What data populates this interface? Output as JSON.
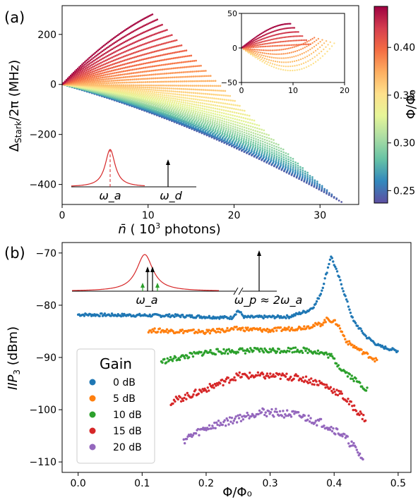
{
  "colors": {
    "colormap": [
      "#5e4fa2",
      "#3288bd",
      "#66c2a5",
      "#abdda4",
      "#e6f598",
      "#fee08b",
      "#fdae61",
      "#f46d43",
      "#d53e4f",
      "#9e0142"
    ],
    "gain_0": "#1f77b4",
    "gain_5": "#ff7f0e",
    "gain_10": "#2ca02c",
    "gain_15": "#d62728",
    "gain_20": "#9467bd",
    "lorentzian": "#d62728",
    "pump_arrow": "#000000",
    "side_arrows": "#2ca02c"
  },
  "chart_data": [
    {
      "type": "scatter",
      "panel_label": "(a)",
      "xlabel": "n̄ ( 10³ photons)",
      "ylabel": "Δ_Stark/2π (MHz)",
      "xlim": [
        0,
        34.5
      ],
      "ylim": [
        -480,
        315
      ],
      "xticks": [
        "0",
        "10",
        "20",
        "30"
      ],
      "yticks": [
        "200",
        "0",
        "−200",
        "−400"
      ],
      "series_count": 40,
      "series_ranges": {
        "phi": [
          0.24,
          0.44
        ],
        "n_max_photons_1e3": [
          32.5,
          10.5
        ],
        "end_shift_MHz": [
          -470,
          280
        ],
        "description": "one dotted curve per flux bias; low flux bends downward to about -470 MHz at 32.5e3 photons, high flux bends upward to about 280 MHz at 10.5e3 photons"
      },
      "colorbar": {
        "label": "Φ/Φ₀",
        "range": [
          0.237,
          0.443
        ],
        "ticks": [
          "0.40",
          "0.35",
          "0.30",
          "0.25"
        ]
      },
      "inset": {
        "xlim": [
          0,
          20
        ],
        "ylim": [
          -50,
          50
        ],
        "xticks": [
          "0",
          "10",
          "20"
        ],
        "yticks": [
          "50",
          "0",
          "−50"
        ],
        "series_count": 12,
        "description": "zoom of the high-flux branch near zero shift"
      },
      "schematic": {
        "resonance_label": "ω_a",
        "drive_label": "ω_d"
      }
    },
    {
      "type": "scatter",
      "panel_label": "(b)",
      "xlabel": "Φ/Φ₀",
      "ylabel": "IIP₃ (dBm)",
      "xlim": [
        -0.025,
        0.52
      ],
      "ylim": [
        -112,
        -68
      ],
      "xticks": [
        "0.0",
        "0.1",
        "0.2",
        "0.3",
        "0.4",
        "0.5"
      ],
      "yticks": [
        "−70",
        "−80",
        "−90",
        "−100",
        "−110"
      ],
      "legend_title": "Gain",
      "legend_position": "lower-left",
      "series": [
        {
          "name": "0 dB",
          "color_key": "gain_0",
          "x_range": [
            0.0,
            0.5
          ],
          "anchors": [
            [
              0.0,
              -81.8
            ],
            [
              0.15,
              -82.0
            ],
            [
              0.24,
              -82.4
            ],
            [
              0.25,
              -81.0
            ],
            [
              0.26,
              -82.3
            ],
            [
              0.33,
              -82.2
            ],
            [
              0.36,
              -81.0
            ],
            [
              0.37,
              -80.0
            ],
            [
              0.38,
              -77.5
            ],
            [
              0.39,
              -73.0
            ],
            [
              0.395,
              -70.5
            ],
            [
              0.41,
              -75.5
            ],
            [
              0.43,
              -83.0
            ],
            [
              0.45,
              -86.0
            ],
            [
              0.47,
              -87.8
            ],
            [
              0.5,
              -88.8
            ]
          ]
        },
        {
          "name": "5 dB",
          "color_key": "gain_5",
          "x_range": [
            0.11,
            0.467
          ],
          "anchors": [
            [
              0.11,
              -84.8
            ],
            [
              0.2,
              -85.1
            ],
            [
              0.25,
              -84.5
            ],
            [
              0.3,
              -84.8
            ],
            [
              0.35,
              -84.3
            ],
            [
              0.38,
              -83.6
            ],
            [
              0.39,
              -82.6
            ],
            [
              0.405,
              -83.5
            ],
            [
              0.42,
              -87.0
            ],
            [
              0.44,
              -88.6
            ],
            [
              0.467,
              -90.6
            ]
          ]
        },
        {
          "name": "10 dB",
          "color_key": "gain_10",
          "x_range": [
            0.13,
            0.452
          ],
          "anchors": [
            [
              0.13,
              -90.8
            ],
            [
              0.16,
              -90.0
            ],
            [
              0.2,
              -89.0
            ],
            [
              0.25,
              -88.7
            ],
            [
              0.3,
              -88.7
            ],
            [
              0.34,
              -88.5
            ],
            [
              0.37,
              -88.8
            ],
            [
              0.395,
              -89.7
            ],
            [
              0.41,
              -92.0
            ],
            [
              0.43,
              -94.0
            ],
            [
              0.452,
              -96.2
            ]
          ]
        },
        {
          "name": "15 dB",
          "color_key": "gain_15",
          "x_range": [
            0.145,
            0.45
          ],
          "anchors": [
            [
              0.145,
              -98.5
            ],
            [
              0.18,
              -97.0
            ],
            [
              0.22,
              -95.0
            ],
            [
              0.25,
              -93.5
            ],
            [
              0.28,
              -93.5
            ],
            [
              0.32,
              -93.6
            ],
            [
              0.35,
              -94.0
            ],
            [
              0.38,
              -95.0
            ],
            [
              0.41,
              -97.0
            ],
            [
              0.43,
              -99.5
            ],
            [
              0.45,
              -102.0
            ]
          ]
        },
        {
          "name": "20 dB",
          "color_key": "gain_20",
          "x_range": [
            0.165,
            0.445
          ],
          "anchors": [
            [
              0.165,
              -105.8
            ],
            [
              0.2,
              -103.5
            ],
            [
              0.24,
              -102.0
            ],
            [
              0.28,
              -100.5
            ],
            [
              0.3,
              -100.5
            ],
            [
              0.34,
              -101.0
            ],
            [
              0.38,
              -102.5
            ],
            [
              0.41,
              -104.5
            ],
            [
              0.43,
              -107.0
            ],
            [
              0.445,
              -109.5
            ]
          ]
        }
      ],
      "schematic": {
        "resonance_label": "ω_a",
        "pump_label": "ω_p ≈ 2ω_a"
      }
    }
  ]
}
